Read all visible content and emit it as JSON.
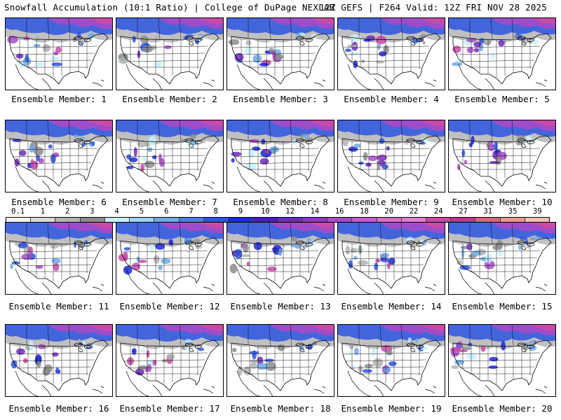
{
  "header": {
    "title_left": "Snowfall Accumulation (10:1 Ratio) | College of DuPage NEXLAB",
    "title_right": "12Z GEFS | F264 Valid: 12Z FRI NOV 28 2025"
  },
  "colorbar": {
    "labels": [
      "0.1",
      "1",
      "2",
      "3",
      "4",
      "5",
      "6",
      "7",
      "8",
      "9",
      "10",
      "12",
      "14",
      "16",
      "18",
      "20",
      "22",
      "24",
      "27",
      "31",
      "35",
      "39"
    ],
    "colors": [
      "#f5f5f5",
      "#d9d9d9",
      "#b3b3b3",
      "#8c8c8c",
      "#c8f0ff",
      "#9bd3f2",
      "#6ea9e8",
      "#4d7fe0",
      "#2d55e0",
      "#1f2ad6",
      "#4a1fb8",
      "#6b2db8",
      "#8a3ac0",
      "#a84ac8",
      "#c85ad0",
      "#d86ec8",
      "#e07cd0",
      "#c84aa8",
      "#b83a90",
      "#d46a7a",
      "#e89a90",
      "#f0c0b0"
    ]
  },
  "panels": [
    {
      "member": "Ensemble Member: 1"
    },
    {
      "member": "Ensemble Member: 2"
    },
    {
      "member": "Ensemble Member: 3"
    },
    {
      "member": "Ensemble Member: 4"
    },
    {
      "member": "Ensemble Member: 5"
    },
    {
      "member": "Ensemble Member: 6"
    },
    {
      "member": "Ensemble Member: 7"
    },
    {
      "member": "Ensemble Member: 8"
    },
    {
      "member": "Ensemble Member: 9"
    },
    {
      "member": "Ensemble Member: 10"
    },
    {
      "member": "Ensemble Member: 11"
    },
    {
      "member": "Ensemble Member: 12"
    },
    {
      "member": "Ensemble Member: 13"
    },
    {
      "member": "Ensemble Member: 14"
    },
    {
      "member": "Ensemble Member: 15"
    },
    {
      "member": "Ensemble Member: 16"
    },
    {
      "member": "Ensemble Member: 17"
    },
    {
      "member": "Ensemble Member: 18"
    },
    {
      "member": "Ensemble Member: 19"
    },
    {
      "member": "Ensemble Member: 20"
    }
  ]
}
